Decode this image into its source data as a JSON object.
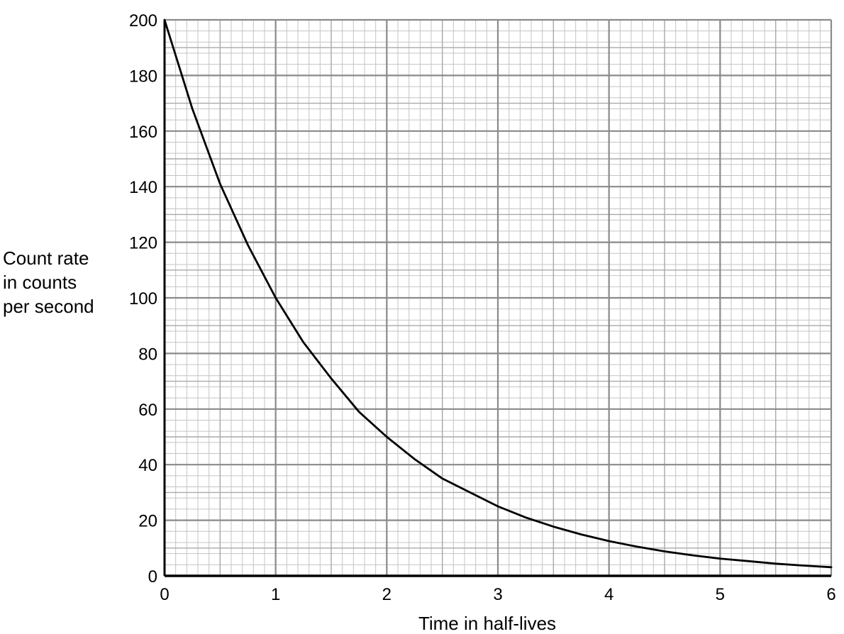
{
  "chart_data": {
    "type": "line",
    "title": "",
    "xlabel": "Time in half-lives",
    "ylabel_lines": [
      "Count rate",
      "in counts",
      "per second"
    ],
    "xlim": [
      0,
      6
    ],
    "ylim": [
      0,
      200
    ],
    "x_ticks": [
      "0",
      "1",
      "2",
      "3",
      "4",
      "5",
      "6"
    ],
    "y_ticks": [
      "0",
      "20",
      "40",
      "60",
      "80",
      "100",
      "120",
      "140",
      "160",
      "180",
      "200"
    ],
    "x_minor_step": 0.1,
    "y_minor_step": 4,
    "x_major_step": 1,
    "y_major_step": 20,
    "grid": true,
    "line_color": "#000000",
    "series": [
      {
        "x": [
          0,
          0.25,
          0.5,
          0.75,
          1,
          1.25,
          1.5,
          1.75,
          2,
          2.25,
          2.5,
          2.75,
          3,
          3.25,
          3.5,
          3.75,
          4,
          4.25,
          4.5,
          4.75,
          5,
          5.25,
          5.5,
          5.75,
          6
        ],
        "y": [
          200,
          168,
          141,
          119,
          100,
          84,
          71,
          59,
          50,
          42,
          35,
          30,
          25,
          21,
          17.7,
          14.9,
          12.5,
          10.5,
          8.8,
          7.4,
          6.2,
          5.3,
          4.4,
          3.7,
          3.1
        ]
      }
    ]
  }
}
